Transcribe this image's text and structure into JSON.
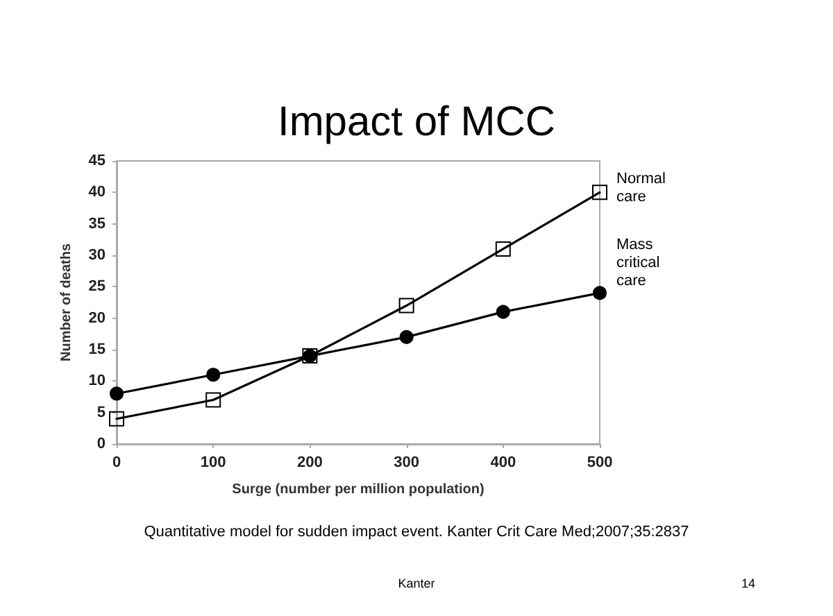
{
  "chart_data": {
    "type": "line",
    "title": "Impact of MCC",
    "xlabel": "Surge (number per million population)",
    "ylabel": "Number of deaths",
    "annotations": [
      "Quantitative model for sudden impact event. Kanter Crit Care Med;2007;35:2837",
      "Kanter",
      "14"
    ],
    "x": [
      0,
      100,
      200,
      300,
      400,
      500
    ],
    "series": [
      {
        "name": "Normal care",
        "color": "#000000",
        "marker": "square",
        "values": [
          4,
          7,
          14,
          22,
          31,
          40
        ]
      },
      {
        "name": "Mass critical care",
        "color": "#000000",
        "marker": "circle",
        "values": [
          8,
          11,
          14,
          17,
          21,
          24
        ]
      }
    ],
    "xlim": [
      0,
      500
    ],
    "xticks": [
      0,
      100,
      200,
      300,
      400,
      500
    ],
    "ylim": [
      0,
      45
    ],
    "yticks": [
      0,
      5,
      10,
      15,
      20,
      25,
      30,
      35,
      40,
      45
    ],
    "grid": false,
    "legend": false,
    "line_style": "solid"
  }
}
